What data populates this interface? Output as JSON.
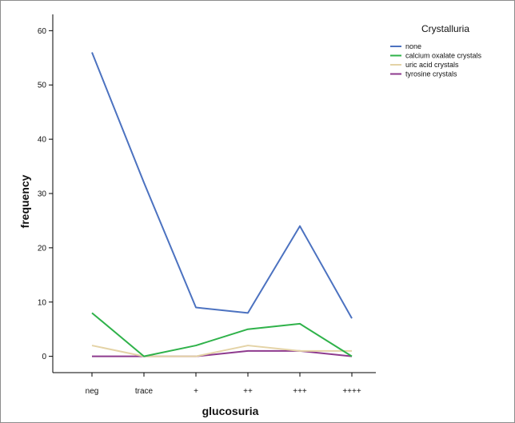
{
  "chart_data": {
    "type": "line",
    "title": "",
    "xlabel": "glucosuria",
    "ylabel": "frequency",
    "categories": [
      "neg",
      "trace",
      "+",
      "++",
      "+++",
      "++++"
    ],
    "y_ticks": [
      0,
      10,
      20,
      30,
      40,
      50,
      60
    ],
    "ylim": [
      -3,
      63
    ],
    "grid": false,
    "legend": {
      "title": "Crystalluria",
      "placement": "top-right"
    },
    "series": [
      {
        "name": "none",
        "color": "#4c72c0",
        "values": [
          56,
          32,
          9,
          8,
          24,
          7
        ]
      },
      {
        "name": "calcium oxalate crystals",
        "color": "#2fb24a",
        "values": [
          8,
          0,
          2,
          5,
          6,
          0
        ]
      },
      {
        "name": "uric acid crystals",
        "color": "#e4d3a6",
        "values": [
          2,
          0,
          0,
          2,
          1,
          1
        ]
      },
      {
        "name": "tyrosine crystals",
        "color": "#8e3a8e",
        "values": [
          0,
          0,
          0,
          1,
          1,
          0
        ]
      }
    ]
  }
}
